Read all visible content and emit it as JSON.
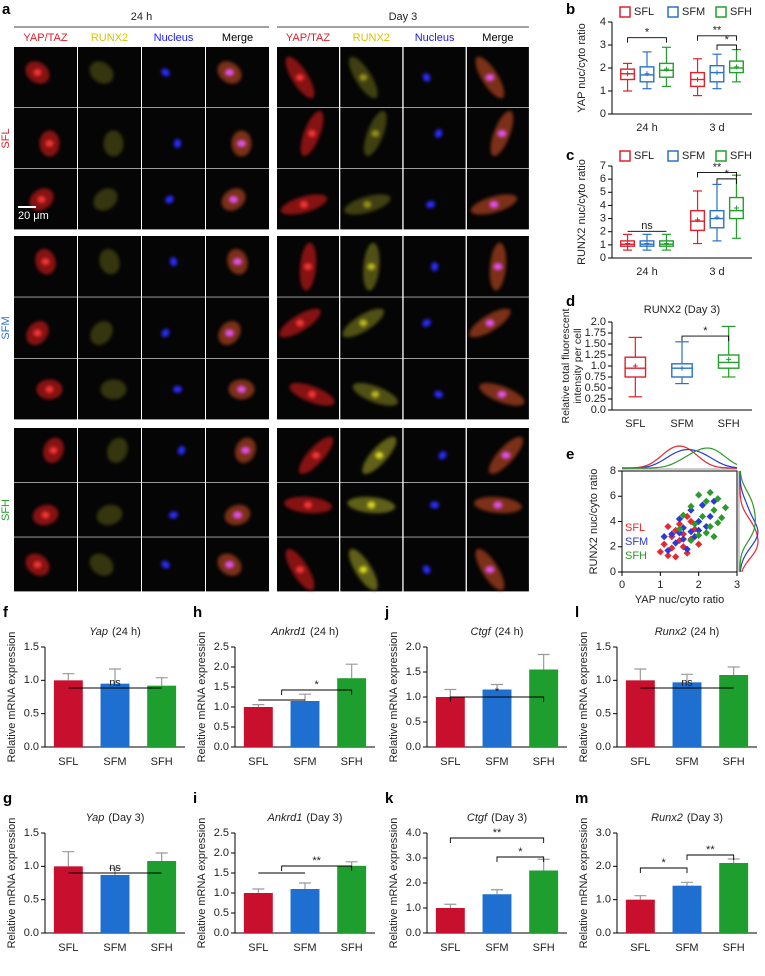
{
  "micrograph": {
    "panel": "a",
    "timepoints": [
      "24 h",
      "Day 3"
    ],
    "channels": [
      "YAP/TAZ",
      "RUNX2",
      "Nucleus",
      "Merge"
    ],
    "groups": [
      "SFL",
      "SFM",
      "SFH"
    ],
    "scale_bar": "20 μm"
  },
  "chart_data": [
    {
      "type": "box",
      "panel": "b",
      "ylabel": "YAP nuc/cyto ratio",
      "categories": [
        "24 h",
        "3 d"
      ],
      "series": [
        {
          "name": "SFL",
          "color": "#e0202a",
          "values": [
            {
              "min": 1.0,
              "q1": 1.5,
              "median": 1.75,
              "q3": 1.95,
              "max": 2.2,
              "mean": 1.75
            },
            {
              "min": 0.8,
              "q1": 1.2,
              "median": 1.5,
              "q3": 1.8,
              "max": 2.4,
              "mean": 1.5
            }
          ]
        },
        {
          "name": "SFM",
          "color": "#2a72c8",
          "values": [
            {
              "min": 1.1,
              "q1": 1.4,
              "median": 1.7,
              "q3": 2.05,
              "max": 2.7,
              "mean": 1.75
            },
            {
              "min": 1.1,
              "q1": 1.4,
              "median": 1.8,
              "q3": 2.1,
              "max": 2.6,
              "mean": 1.8
            }
          ]
        },
        {
          "name": "SFH",
          "color": "#22a02a",
          "values": [
            {
              "min": 1.2,
              "q1": 1.6,
              "median": 1.9,
              "q3": 2.2,
              "max": 2.9,
              "mean": 1.95
            },
            {
              "min": 1.4,
              "q1": 1.8,
              "median": 2.0,
              "q3": 2.3,
              "max": 2.8,
              "mean": 2.05
            }
          ]
        }
      ],
      "ylim": [
        0,
        4
      ],
      "yticks": [
        0,
        1,
        2,
        3,
        4
      ],
      "annotations": [
        "*",
        "**",
        "*"
      ]
    },
    {
      "type": "box",
      "panel": "c",
      "ylabel": "RUNX2 nuc/cyto ratio",
      "categories": [
        "24 h",
        "3 d"
      ],
      "series": [
        {
          "name": "SFL",
          "color": "#e0202a",
          "values": [
            {
              "min": 0.6,
              "q1": 0.9,
              "median": 1.05,
              "q3": 1.3,
              "max": 1.8,
              "mean": 1.1
            },
            {
              "min": 1.1,
              "q1": 2.1,
              "median": 2.8,
              "q3": 3.6,
              "max": 5.1,
              "mean": 2.9
            }
          ]
        },
        {
          "name": "SFM",
          "color": "#2a72c8",
          "values": [
            {
              "min": 0.6,
              "q1": 0.9,
              "median": 1.05,
              "q3": 1.3,
              "max": 1.8,
              "mean": 1.1
            },
            {
              "min": 1.3,
              "q1": 2.3,
              "median": 3.0,
              "q3": 3.6,
              "max": 5.6,
              "mean": 3.1
            }
          ]
        },
        {
          "name": "SFH",
          "color": "#22a02a",
          "values": [
            {
              "min": 0.6,
              "q1": 0.9,
              "median": 1.05,
              "q3": 1.3,
              "max": 1.8,
              "mean": 1.1
            },
            {
              "min": 1.5,
              "q1": 3.0,
              "median": 3.6,
              "q3": 4.6,
              "max": 6.3,
              "mean": 3.8
            }
          ]
        }
      ],
      "ylim": [
        0,
        7
      ],
      "yticks": [
        0,
        1,
        2,
        3,
        4,
        5,
        6,
        7
      ],
      "annotations": [
        "ns",
        "**",
        "*"
      ]
    },
    {
      "type": "box",
      "panel": "d",
      "title": "RUNX2 (Day 3)",
      "ylabel_lines": [
        "Relative total fluorescent",
        "intensity per cell"
      ],
      "categories": [
        "SFL",
        "SFM",
        "SFH"
      ],
      "colors": [
        "#e0202a",
        "#2a72c8",
        "#22a02a"
      ],
      "values": [
        {
          "min": 0.3,
          "q1": 0.75,
          "median": 0.95,
          "q3": 1.2,
          "max": 1.65,
          "mean": 1.0
        },
        {
          "min": 0.6,
          "q1": 0.75,
          "median": 0.95,
          "q3": 1.05,
          "max": 1.55,
          "mean": 0.95
        },
        {
          "min": 0.75,
          "q1": 0.95,
          "median": 1.08,
          "q3": 1.25,
          "max": 1.9,
          "mean": 1.15
        }
      ],
      "ylim": [
        0,
        2
      ],
      "yticks": [
        {
          "value": 0,
          "label": "0.0"
        },
        0.25,
        {
          "value": 0.5,
          "label": "0.50"
        },
        0.75,
        {
          "value": 1,
          "label": "1.0"
        },
        1.25,
        {
          "value": 1.5,
          "label": "1.50"
        },
        1.75,
        {
          "value": 2,
          "label": "2.0"
        }
      ],
      "annotations": [
        "*"
      ]
    },
    {
      "type": "scatter",
      "panel": "e",
      "xlabel": "YAP nuc/cyto ratio",
      "ylabel": "RUNX2 nuc/cyto ratio",
      "series": [
        {
          "name": "SFL",
          "color": "#e8282e",
          "x": [
            1.0,
            1.1,
            1.2,
            1.3,
            1.3,
            1.4,
            1.4,
            1.5,
            1.5,
            1.6,
            1.6,
            1.7,
            1.8,
            1.8,
            1.9,
            2.0,
            1.2,
            1.7
          ],
          "y": [
            1.6,
            2.2,
            1.3,
            2.8,
            1.9,
            3.3,
            1.2,
            2.5,
            3.8,
            2.0,
            3.0,
            1.5,
            4.0,
            2.6,
            3.4,
            2.2,
            3.6,
            4.4
          ]
        },
        {
          "name": "SFM",
          "color": "#2a3ad8",
          "x": [
            1.1,
            1.2,
            1.3,
            1.4,
            1.5,
            1.6,
            1.6,
            1.7,
            1.8,
            1.8,
            1.9,
            2.0,
            2.0,
            2.1,
            2.2,
            2.3,
            1.5,
            2.4
          ],
          "y": [
            2.8,
            1.7,
            3.0,
            2.3,
            4.2,
            3.5,
            2.6,
            1.8,
            3.2,
            4.9,
            2.8,
            4.0,
            3.3,
            5.3,
            3.6,
            4.4,
            3.1,
            5.6
          ]
        },
        {
          "name": "SFH",
          "color": "#2a9a2a",
          "x": [
            1.5,
            1.6,
            1.8,
            1.9,
            2.0,
            2.0,
            2.1,
            2.2,
            2.3,
            2.3,
            2.4,
            2.5,
            2.5,
            2.6,
            2.7,
            2.2,
            1.8,
            2.4
          ],
          "y": [
            3.4,
            4.5,
            5.2,
            3.8,
            6.1,
            2.9,
            4.4,
            5.6,
            3.6,
            6.3,
            4.9,
            3.9,
            5.8,
            4.3,
            5.1,
            3.1,
            2.5,
            2.8
          ]
        }
      ],
      "xlim": [
        0,
        3
      ],
      "xticks": [
        0,
        1,
        2,
        3
      ],
      "ylim": [
        0,
        8
      ],
      "yticks": [
        0,
        2,
        4,
        6,
        8
      ]
    },
    {
      "type": "bar",
      "panel": "f",
      "gene": "Yap",
      "condition": "(24 h)",
      "ylabel": "Relative mRNA expression",
      "categories": [
        "SFL",
        "SFM",
        "SFH"
      ],
      "colors": [
        "#c8102e",
        "#1f6fd0",
        "#1e9e2e"
      ],
      "values": [
        1.0,
        0.95,
        0.92
      ],
      "errors": [
        0.1,
        0.22,
        0.12
      ],
      "ylim": [
        0,
        1.5
      ],
      "yticks": [
        {
          "value": 0,
          "label": "0.0"
        },
        0.5,
        {
          "value": 1,
          "label": "1.0"
        },
        1.5
      ],
      "annotations": [
        "ns"
      ]
    },
    {
      "type": "bar",
      "panel": "h",
      "gene": "Ankrd1",
      "condition": "(24 h)",
      "ylabel": "Relative mRNA expression",
      "categories": [
        "SFL",
        "SFM",
        "SFH"
      ],
      "colors": [
        "#c8102e",
        "#1f6fd0",
        "#1e9e2e"
      ],
      "values": [
        1.0,
        1.15,
        1.72
      ],
      "errors": [
        0.06,
        0.17,
        0.35
      ],
      "ylim": [
        0,
        2.5
      ],
      "yticks": [
        {
          "value": 0,
          "label": "0.0"
        },
        0.5,
        {
          "value": 1,
          "label": "1.0"
        },
        1.5,
        {
          "value": 2,
          "label": "2.0"
        },
        2.5
      ],
      "annotations": [
        "*"
      ]
    },
    {
      "type": "bar",
      "panel": "j",
      "gene": "Ctgf",
      "condition": "(24 h)",
      "ylabel": "Relative mRNA expression",
      "categories": [
        "SFL",
        "SFM",
        "SFH"
      ],
      "colors": [
        "#c8102e",
        "#1f6fd0",
        "#1e9e2e"
      ],
      "values": [
        1.0,
        1.15,
        1.55
      ],
      "errors": [
        0.15,
        0.1,
        0.3
      ],
      "ylim": [
        0,
        2
      ],
      "yticks": [
        {
          "value": 0,
          "label": "0.0"
        },
        0.5,
        {
          "value": 1,
          "label": "1.0"
        },
        1.5,
        {
          "value": 2,
          "label": "2.0"
        }
      ],
      "annotations": [
        "*"
      ]
    },
    {
      "type": "bar",
      "panel": "l",
      "gene": "Runx2",
      "condition": "(24 h)",
      "ylabel": "Relative mRNA expression",
      "categories": [
        "SFL",
        "SFM",
        "SFH"
      ],
      "colors": [
        "#c8102e",
        "#1f6fd0",
        "#1e9e2e"
      ],
      "values": [
        1.0,
        0.97,
        1.08
      ],
      "errors": [
        0.17,
        0.12,
        0.12
      ],
      "ylim": [
        0,
        1.5
      ],
      "yticks": [
        {
          "value": 0,
          "label": "0.0"
        },
        0.5,
        {
          "value": 1,
          "label": "1.0"
        },
        1.5
      ],
      "annotations": [
        "ns"
      ]
    },
    {
      "type": "bar",
      "panel": "g",
      "gene": "Yap",
      "condition": "(Day 3)",
      "ylabel": "Relative mRNA expression",
      "categories": [
        "SFL",
        "SFM",
        "SFH"
      ],
      "colors": [
        "#c8102e",
        "#1f6fd0",
        "#1e9e2e"
      ],
      "values": [
        1.0,
        0.87,
        1.08
      ],
      "errors": [
        0.22,
        0.1,
        0.12
      ],
      "ylim": [
        0,
        1.5
      ],
      "yticks": [
        {
          "value": 0,
          "label": "0.0"
        },
        0.5,
        {
          "value": 1,
          "label": "1.0"
        },
        1.5
      ],
      "annotations": [
        "ns"
      ]
    },
    {
      "type": "bar",
      "panel": "i",
      "gene": "Ankrd1",
      "condition": "(Day 3)",
      "ylabel": "Relative mRNA expression",
      "categories": [
        "SFL",
        "SFM",
        "SFH"
      ],
      "colors": [
        "#c8102e",
        "#1f6fd0",
        "#1e9e2e"
      ],
      "values": [
        1.0,
        1.1,
        1.68
      ],
      "errors": [
        0.1,
        0.15,
        0.1
      ],
      "ylim": [
        0,
        2.5
      ],
      "yticks": [
        {
          "value": 0,
          "label": "0.0"
        },
        0.5,
        {
          "value": 1,
          "label": "1.0"
        },
        1.5,
        {
          "value": 2,
          "label": "2.0"
        },
        2.5
      ],
      "annotations": [
        "**"
      ]
    },
    {
      "type": "bar",
      "panel": "k",
      "gene": "Ctgf",
      "condition": "(Day 3)",
      "ylabel": "Relative mRNA expression",
      "categories": [
        "SFL",
        "SFM",
        "SFH"
      ],
      "colors": [
        "#c8102e",
        "#1f6fd0",
        "#1e9e2e"
      ],
      "values": [
        1.0,
        1.55,
        2.5
      ],
      "errors": [
        0.15,
        0.18,
        0.45
      ],
      "ylim": [
        0,
        4
      ],
      "yticks": [
        {
          "value": 0,
          "label": "0.0"
        },
        {
          "value": 1,
          "label": "1.0"
        },
        {
          "value": 2,
          "label": "2.0"
        },
        {
          "value": 3,
          "label": "3.0"
        },
        {
          "value": 4,
          "label": "4.0"
        }
      ],
      "annotations": [
        "**",
        "*"
      ]
    },
    {
      "type": "bar",
      "panel": "m",
      "gene": "Runx2",
      "condition": "(Day 3)",
      "ylabel": "Relative mRNA expression",
      "categories": [
        "SFL",
        "SFM",
        "SFH"
      ],
      "colors": [
        "#c8102e",
        "#1f6fd0",
        "#1e9e2e"
      ],
      "values": [
        1.0,
        1.42,
        2.1
      ],
      "errors": [
        0.12,
        0.1,
        0.12
      ],
      "ylim": [
        0,
        3
      ],
      "yticks": [
        {
          "value": 0,
          "label": "0.0"
        },
        {
          "value": 1,
          "label": "1.0"
        },
        {
          "value": 2,
          "label": "2.0"
        },
        {
          "value": 3,
          "label": "3.0"
        }
      ],
      "annotations": [
        "*",
        "**"
      ]
    }
  ]
}
